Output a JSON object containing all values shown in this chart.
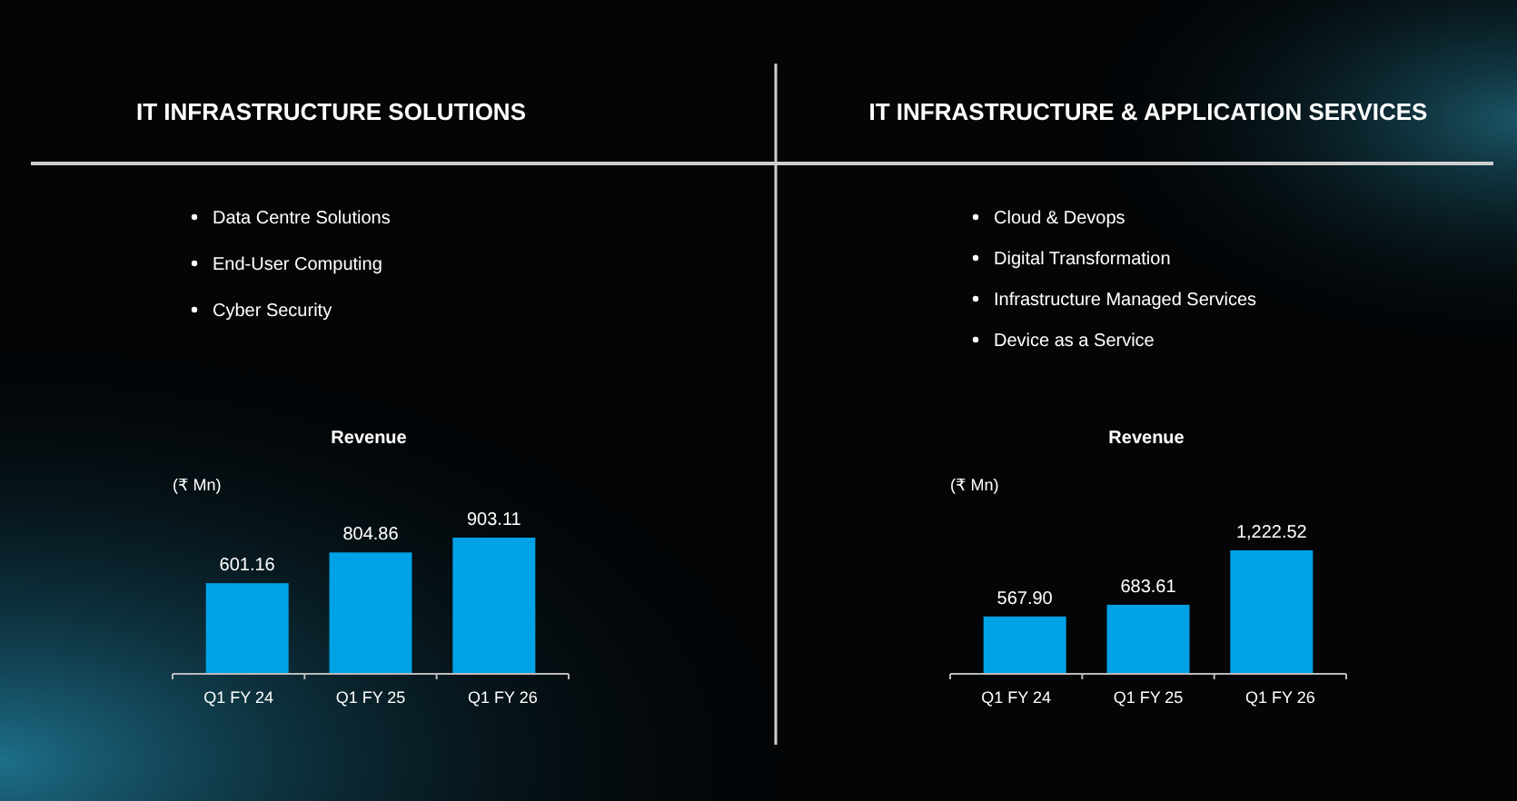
{
  "chart_data": [
    {
      "type": "bar",
      "title": "IT INFRASTRUCTURE SOLUTIONS",
      "subtitle": "Revenue",
      "ylabel": "(₹ Mn)",
      "annotations": [
        "Data Centre Solutions",
        "End-User Computing",
        "Cyber Security"
      ],
      "categories": [
        "Q1 FY 24",
        "Q1 FY 25",
        "Q1 FY 26"
      ],
      "values": [
        601.16,
        804.86,
        903.11
      ],
      "value_labels": [
        "601.16",
        "804.86",
        "903.11"
      ],
      "color": "#00a2e6"
    },
    {
      "type": "bar",
      "title": "IT INFRASTRUCTURE & APPLICATION SERVICES",
      "subtitle": "Revenue",
      "ylabel": "(₹ Mn)",
      "annotations": [
        "Cloud & Devops",
        "Digital Transformation",
        "Infrastructure Managed Services",
        "Device as a Service"
      ],
      "categories": [
        "Q1 FY 24",
        "Q1 FY 25",
        "Q1 FY 26"
      ],
      "values": [
        567.9,
        683.61,
        1222.52
      ],
      "value_labels": [
        "567.90",
        "683.61",
        "1,222.52"
      ],
      "color": "#00a2e6"
    }
  ]
}
